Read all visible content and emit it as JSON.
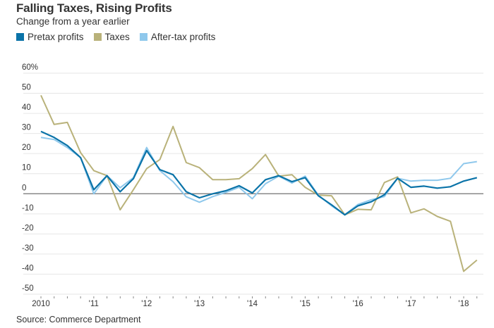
{
  "title": "Falling Taxes, Rising Profits",
  "subtitle": "Change from a year earlier",
  "source": "Source: Commerce Department",
  "chart_data": {
    "type": "line",
    "title": "Falling Taxes, Rising Profits",
    "subtitle": "Change from a year earlier",
    "xlabel": "",
    "ylabel": "",
    "ylim": [
      -50,
      60
    ],
    "y_ticks": [
      60,
      50,
      40,
      30,
      20,
      10,
      0,
      -10,
      -20,
      -30,
      -40,
      -50
    ],
    "y_tick_labels": [
      "60%",
      "50",
      "40",
      "30",
      "20",
      "10",
      "0",
      "-10",
      "-20",
      "-30",
      "-40",
      "-50"
    ],
    "x_tick_labels": [
      "2010",
      "'11",
      "'12",
      "'13",
      "'14",
      "'15",
      "'16",
      "'17",
      "'18"
    ],
    "x_range_quarters": [
      0,
      34
    ],
    "grid": true,
    "legend_position": "top-left",
    "x": [
      "2010Q1",
      "2010Q2",
      "2010Q3",
      "2010Q4",
      "2011Q1",
      "2011Q2",
      "2011Q3",
      "2011Q4",
      "2012Q1",
      "2012Q2",
      "2012Q3",
      "2012Q4",
      "2013Q1",
      "2013Q2",
      "2013Q3",
      "2013Q4",
      "2014Q1",
      "2014Q2",
      "2014Q3",
      "2014Q4",
      "2015Q1",
      "2015Q2",
      "2015Q3",
      "2015Q4",
      "2016Q1",
      "2016Q2",
      "2016Q3",
      "2016Q4",
      "2017Q1",
      "2017Q2",
      "2017Q3",
      "2017Q4",
      "2018Q1",
      "2018Q2"
    ],
    "series": [
      {
        "name": "Pretax profits",
        "color": "#0a73a8",
        "values": [
          31,
          28,
          24,
          18,
          2,
          9,
          1,
          7.5,
          21.5,
          12,
          9.5,
          1,
          -2,
          0,
          1.5,
          4,
          0.4,
          7,
          9,
          6,
          8,
          -1,
          -5.5,
          -10.5,
          -6,
          -4,
          -0.5,
          7.7,
          3.2,
          3.8,
          2.8,
          3.5,
          6.3,
          8
        ]
      },
      {
        "name": "Taxes",
        "color": "#b9b27a",
        "values": [
          49,
          34.5,
          35.5,
          20.5,
          11.5,
          9,
          -8,
          2,
          12.5,
          17,
          33.5,
          15.5,
          13,
          7,
          7,
          7.5,
          12.5,
          19.5,
          8.8,
          9.5,
          3.2,
          -0.7,
          -1,
          -10.5,
          -7.7,
          -8,
          5.6,
          8.4,
          -9.5,
          -7.5,
          -11.3,
          -13.7,
          -38.6,
          -33
        ]
      },
      {
        "name": "After-tax profits",
        "color": "#8fc8ec",
        "values": [
          28,
          27,
          23,
          18,
          0,
          9,
          3,
          8,
          23,
          11.5,
          6,
          -1.5,
          -4.2,
          -1.4,
          0.7,
          3.2,
          -2.5,
          5,
          8.8,
          5.3,
          8.8,
          -0.7,
          -6,
          -10.5,
          -5.3,
          -3,
          -1.4,
          7.7,
          6.3,
          6.7,
          6.7,
          7.7,
          15,
          16
        ]
      }
    ]
  }
}
